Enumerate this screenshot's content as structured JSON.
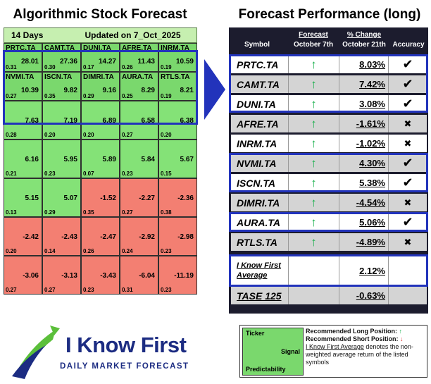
{
  "left_title": "Algorithmic Stock Forecast",
  "right_title": "Forecast Performance (long)",
  "grid_header": {
    "days": "14 Days",
    "updated": "Updated on 7_Oct_2025"
  },
  "grid": [
    [
      {
        "symbol": "PRTC.TA",
        "signal": "28.01",
        "predictability": "0.31",
        "color": "green"
      },
      {
        "symbol": "CAMT.TA",
        "signal": "27.36",
        "predictability": "0.30",
        "color": "green"
      },
      {
        "symbol": "DUNI.TA",
        "signal": "14.27",
        "predictability": "0.17",
        "color": "green"
      },
      {
        "symbol": "AFRE.TA",
        "signal": "11.43",
        "predictability": "0.26",
        "color": "green"
      },
      {
        "symbol": "INRM.TA",
        "signal": "10.59",
        "predictability": "0.19",
        "color": "green"
      }
    ],
    [
      {
        "symbol": "NVMI.TA",
        "signal": "10.39",
        "predictability": "0.27",
        "color": "green"
      },
      {
        "symbol": "ISCN.TA",
        "signal": "9.82",
        "predictability": "0.35",
        "color": "green"
      },
      {
        "symbol": "DIMRI.TA",
        "signal": "9.16",
        "predictability": "0.29",
        "color": "green"
      },
      {
        "symbol": "AURA.TA",
        "signal": "8.29",
        "predictability": "0.25",
        "color": "green"
      },
      {
        "symbol": "RTLS.TA",
        "signal": "8.21",
        "predictability": "0.19",
        "color": "green"
      }
    ],
    [
      {
        "symbol": "",
        "signal": "7.63",
        "predictability": "0.28",
        "color": "lightgreen"
      },
      {
        "symbol": "",
        "signal": "7.19",
        "predictability": "0.20",
        "color": "lightgreen"
      },
      {
        "symbol": "",
        "signal": "6.89",
        "predictability": "0.20",
        "color": "lightgreen"
      },
      {
        "symbol": "",
        "signal": "6.58",
        "predictability": "0.27",
        "color": "lightgreen"
      },
      {
        "symbol": "",
        "signal": "6.38",
        "predictability": "0.20",
        "color": "lightgreen"
      }
    ],
    [
      {
        "symbol": "",
        "signal": "6.16",
        "predictability": "0.21",
        "color": "lightgreen"
      },
      {
        "symbol": "",
        "signal": "5.95",
        "predictability": "0.23",
        "color": "lightgreen"
      },
      {
        "symbol": "",
        "signal": "5.89",
        "predictability": "0.07",
        "color": "lightgreen"
      },
      {
        "symbol": "",
        "signal": "5.84",
        "predictability": "0.23",
        "color": "lightgreen"
      },
      {
        "symbol": "",
        "signal": "5.67",
        "predictability": "0.15",
        "color": "lightgreen"
      }
    ],
    [
      {
        "symbol": "",
        "signal": "5.15",
        "predictability": "0.13",
        "color": "lightgreen"
      },
      {
        "symbol": "",
        "signal": "5.07",
        "predictability": "0.29",
        "color": "lightgreen"
      },
      {
        "symbol": "",
        "signal": "-1.52",
        "predictability": "0.35",
        "color": "red"
      },
      {
        "symbol": "",
        "signal": "-2.27",
        "predictability": "0.27",
        "color": "red"
      },
      {
        "symbol": "",
        "signal": "-2.36",
        "predictability": "0.38",
        "color": "red"
      }
    ],
    [
      {
        "symbol": "",
        "signal": "-2.42",
        "predictability": "0.20",
        "color": "red"
      },
      {
        "symbol": "",
        "signal": "-2.43",
        "predictability": "0.14",
        "color": "red"
      },
      {
        "symbol": "",
        "signal": "-2.47",
        "predictabilit": "0.26",
        "predictability": "0.26",
        "color": "red"
      },
      {
        "symbol": "",
        "signal": "-2.92",
        "predictability": "0.24",
        "color": "red"
      },
      {
        "symbol": "",
        "signal": "-2.98",
        "predictability": "0.23",
        "color": "red"
      }
    ],
    [
      {
        "symbol": "",
        "signal": "-3.06",
        "predictability": "0.27",
        "color": "red"
      },
      {
        "symbol": "",
        "signal": "-3.13",
        "predictability": "0.27",
        "color": "red"
      },
      {
        "symbol": "",
        "signal": "-3.43",
        "predictability": "0.23",
        "color": "red"
      },
      {
        "symbol": "",
        "signal": "-6.04",
        "predictability": "0.31",
        "color": "red"
      },
      {
        "symbol": "",
        "signal": "-11.19",
        "predictability": "0.23",
        "color": "red"
      }
    ]
  ],
  "perf_header": {
    "symbol": "Symbol",
    "forecast_top": "Forecast",
    "forecast_bottom": "October 7th",
    "change_top": "% Change",
    "change_bottom": "October 21th",
    "accuracy": "Accuracy"
  },
  "perf_rows": [
    {
      "symbol": "PRTC.TA",
      "arrow": "↑",
      "change": "8.03%",
      "accuracy": "✔"
    },
    {
      "symbol": "CAMT.TA",
      "arrow": "↑",
      "change": "7.42%",
      "accuracy": "✔"
    },
    {
      "symbol": "DUNI.TA",
      "arrow": "↑",
      "change": "3.08%",
      "accuracy": "✔"
    },
    {
      "symbol": "AFRE.TA",
      "arrow": "↑",
      "change": "-1.61%",
      "accuracy": "✖"
    },
    {
      "symbol": "INRM.TA",
      "arrow": "↑",
      "change": "-1.02%",
      "accuracy": "✖"
    },
    {
      "symbol": "NVMI.TA",
      "arrow": "↑",
      "change": "4.30%",
      "accuracy": "✔"
    },
    {
      "symbol": "ISCN.TA",
      "arrow": "↑",
      "change": "5.38%",
      "accuracy": "✔"
    },
    {
      "symbol": "DIMRI.TA",
      "arrow": "↑",
      "change": "-4.54%",
      "accuracy": "✖"
    },
    {
      "symbol": "AURA.TA",
      "arrow": "↑",
      "change": "5.06%",
      "accuracy": "✔"
    },
    {
      "symbol": "RTLS.TA",
      "arrow": "↑",
      "change": "-4.89%",
      "accuracy": "✖"
    }
  ],
  "average": {
    "label_line1": "I Know First",
    "label_line2": "Average",
    "change": "2.12%"
  },
  "benchmark": {
    "symbol": "TASE 125",
    "change": "-0.63%"
  },
  "legend": {
    "ticker": "Ticker",
    "signal": "Signal",
    "predictability": "Predictability",
    "long": "Recommended Long Position:",
    "long_arrow": "↑",
    "short": "Recommended Short Position:",
    "short_arrow": "↓",
    "avg_name": "I Know First Average",
    "avg_desc": " denotes the non-weighted average return of the listed symbols"
  },
  "logo": {
    "name": "I Know First",
    "tagline": "DAILY MARKET FORECAST"
  },
  "colors": {
    "green": "#7ad86d",
    "red": "#f37f72",
    "blue": "#2233bb",
    "navy": "#1c2c82",
    "arrow_green": "#19b04c"
  }
}
